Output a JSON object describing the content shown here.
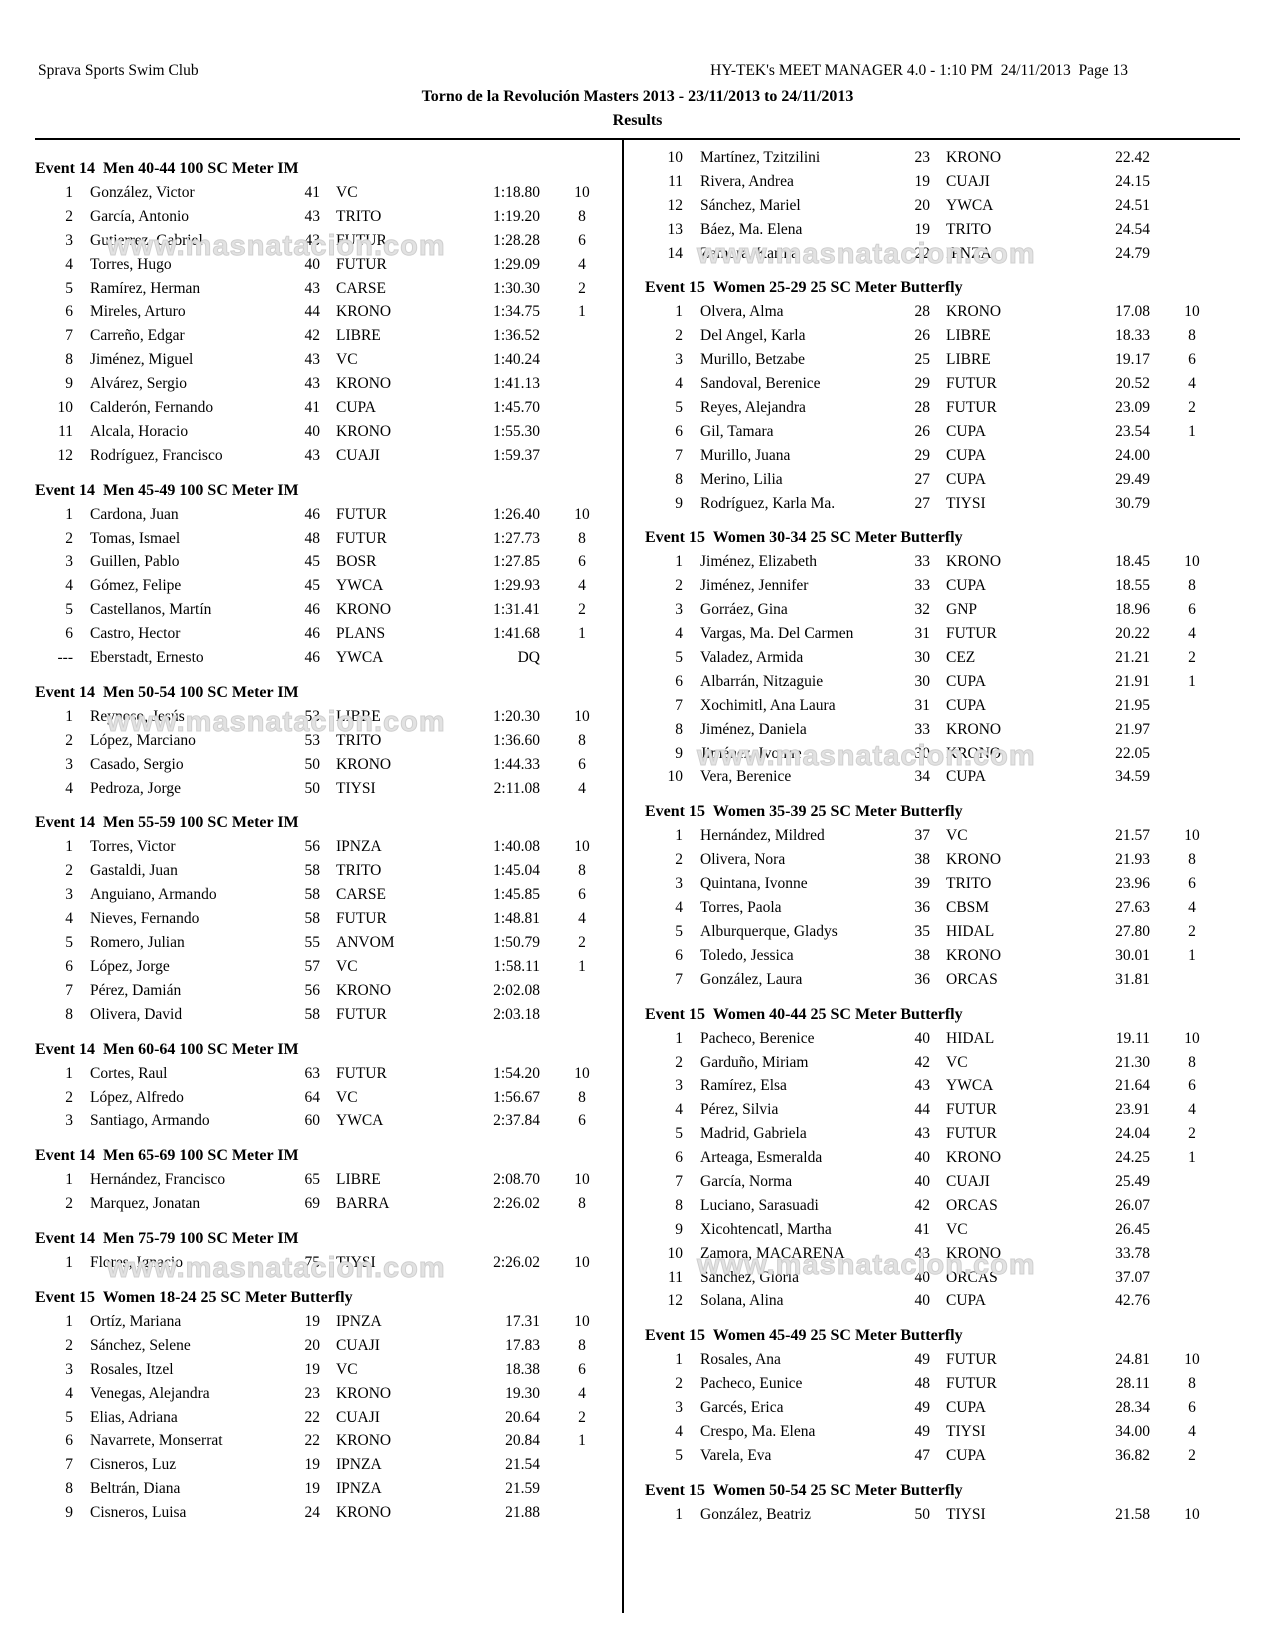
{
  "header": {
    "club": "Sprava Sports Swim Club",
    "manager": "HY-TEK's MEET MANAGER 4.0 - 1:10 PM  24/11/2013  Page 13",
    "title": "Torno de la Revolución Masters 2013 - 23/11/2013 to 24/11/2013",
    "results_label": "Results"
  },
  "watermark": {
    "text": "www.masnatacion.com"
  },
  "results": {
    "columns": [
      {
        "blocks": [
          {
            "title": "Event 14  Men 40-44 100 SC Meter IM",
            "rows": [
              [
                "1",
                "González, Victor",
                "41",
                "VC",
                "1:18.80",
                "10"
              ],
              [
                "2",
                "García, Antonio",
                "43",
                "TRITO",
                "1:19.20",
                "8"
              ],
              [
                "3",
                "Gutierrez, Gabriel",
                "43",
                "FUTUR",
                "1:28.28",
                "6"
              ],
              [
                "4",
                "Torres, Hugo",
                "40",
                "FUTUR",
                "1:29.09",
                "4"
              ],
              [
                "5",
                "Ramírez, Herman",
                "43",
                "CARSE",
                "1:30.30",
                "2"
              ],
              [
                "6",
                "Mireles, Arturo",
                "44",
                "KRONO",
                "1:34.75",
                "1"
              ],
              [
                "7",
                "Carreño, Edgar",
                "42",
                "LIBRE",
                "1:36.52",
                ""
              ],
              [
                "8",
                "Jiménez, Miguel",
                "43",
                "VC",
                "1:40.24",
                ""
              ],
              [
                "9",
                "Alvárez, Sergio",
                "43",
                "KRONO",
                "1:41.13",
                ""
              ],
              [
                "10",
                "Calderón, Fernando",
                "41",
                "CUPA",
                "1:45.70",
                ""
              ],
              [
                "11",
                "Alcala, Horacio",
                "40",
                "KRONO",
                "1:55.30",
                ""
              ],
              [
                "12",
                "Rodríguez, Francisco",
                "43",
                "CUAJI",
                "1:59.37",
                ""
              ]
            ]
          },
          {
            "title": "Event 14  Men 45-49 100 SC Meter IM",
            "rows": [
              [
                "1",
                "Cardona, Juan",
                "46",
                "FUTUR",
                "1:26.40",
                "10"
              ],
              [
                "2",
                "Tomas, Ismael",
                "48",
                "FUTUR",
                "1:27.73",
                "8"
              ],
              [
                "3",
                "Guillen, Pablo",
                "45",
                "BOSR",
                "1:27.85",
                "6"
              ],
              [
                "4",
                "Gómez, Felipe",
                "45",
                "YWCA",
                "1:29.93",
                "4"
              ],
              [
                "5",
                "Castellanos, Martín",
                "46",
                "KRONO",
                "1:31.41",
                "2"
              ],
              [
                "6",
                "Castro, Hector",
                "46",
                "PLANS",
                "1:41.68",
                "1"
              ],
              [
                "---",
                "Eberstadt, Ernesto",
                "46",
                "YWCA",
                "DQ",
                ""
              ]
            ]
          },
          {
            "title": "Event 14  Men 50-54 100 SC Meter IM",
            "rows": [
              [
                "1",
                "Reynoso, Jesús",
                "53",
                "LIBRE",
                "1:20.30",
                "10"
              ],
              [
                "2",
                "López, Marciano",
                "53",
                "TRITO",
                "1:36.60",
                "8"
              ],
              [
                "3",
                "Casado, Sergio",
                "50",
                "KRONO",
                "1:44.33",
                "6"
              ],
              [
                "4",
                "Pedroza, Jorge",
                "50",
                "TIYSI",
                "2:11.08",
                "4"
              ]
            ]
          },
          {
            "title": "Event 14  Men 55-59 100 SC Meter IM",
            "rows": [
              [
                "1",
                "Torres, Victor",
                "56",
                "IPNZA",
                "1:40.08",
                "10"
              ],
              [
                "2",
                "Gastaldi, Juan",
                "58",
                "TRITO",
                "1:45.04",
                "8"
              ],
              [
                "3",
                "Anguiano, Armando",
                "58",
                "CARSE",
                "1:45.85",
                "6"
              ],
              [
                "4",
                "Nieves, Fernando",
                "58",
                "FUTUR",
                "1:48.81",
                "4"
              ],
              [
                "5",
                "Romero, Julian",
                "55",
                "ANVOM",
                "1:50.79",
                "2"
              ],
              [
                "6",
                "López, Jorge",
                "57",
                "VC",
                "1:58.11",
                "1"
              ],
              [
                "7",
                "Pérez, Damián",
                "56",
                "KRONO",
                "2:02.08",
                ""
              ],
              [
                "8",
                "Olivera, David",
                "58",
                "FUTUR",
                "2:03.18",
                ""
              ]
            ]
          },
          {
            "title": "Event 14  Men 60-64 100 SC Meter IM",
            "rows": [
              [
                "1",
                "Cortes, Raul",
                "63",
                "FUTUR",
                "1:54.20",
                "10"
              ],
              [
                "2",
                "López, Alfredo",
                "64",
                "VC",
                "1:56.67",
                "8"
              ],
              [
                "3",
                "Santiago, Armando",
                "60",
                "YWCA",
                "2:37.84",
                "6"
              ]
            ]
          },
          {
            "title": "Event 14  Men 65-69 100 SC Meter IM",
            "rows": [
              [
                "1",
                "Hernández, Francisco",
                "65",
                "LIBRE",
                "2:08.70",
                "10"
              ],
              [
                "2",
                "Marquez, Jonatan",
                "69",
                "BARRA",
                "2:26.02",
                "8"
              ]
            ]
          },
          {
            "title": "Event 14  Men 75-79 100 SC Meter IM",
            "rows": [
              [
                "1",
                "Flores, Ignacio",
                "75",
                "TIYSI",
                "2:26.02",
                "10"
              ]
            ]
          },
          {
            "title": "Event 15  Women 18-24 25 SC Meter Butterfly",
            "rows": [
              [
                "1",
                "Ortíz, Mariana",
                "19",
                "IPNZA",
                "17.31",
                "10"
              ],
              [
                "2",
                "Sánchez, Selene",
                "20",
                "CUAJI",
                "17.83",
                "8"
              ],
              [
                "3",
                "Rosales, Itzel",
                "19",
                "VC",
                "18.38",
                "6"
              ],
              [
                "4",
                "Venegas, Alejandra",
                "23",
                "KRONO",
                "19.30",
                "4"
              ],
              [
                "5",
                "Elias, Adriana",
                "22",
                "CUAJI",
                "20.64",
                "2"
              ],
              [
                "6",
                "Navarrete, Monserrat",
                "22",
                "KRONO",
                "20.84",
                "1"
              ],
              [
                "7",
                "Cisneros, Luz",
                "19",
                "IPNZA",
                "21.54",
                ""
              ],
              [
                "8",
                "Beltrán, Diana",
                "19",
                "IPNZA",
                "21.59",
                ""
              ],
              [
                "9",
                "Cisneros, Luisa",
                "24",
                "KRONO",
                "21.88",
                ""
              ]
            ]
          }
        ]
      },
      {
        "blocks": [
          {
            "title": null,
            "rows": [
              [
                "10",
                "Martínez, Tzitzilini",
                "23",
                "KRONO",
                "22.42",
                ""
              ],
              [
                "11",
                "Rivera, Andrea",
                "19",
                "CUAJI",
                "24.15",
                ""
              ],
              [
                "12",
                "Sánchez, Mariel",
                "20",
                "YWCA",
                "24.51",
                ""
              ],
              [
                "13",
                "Báez, Ma. Elena",
                "19",
                "TRITO",
                "24.54",
                ""
              ],
              [
                "14",
                "Zamora, Karina",
                "22",
                "IPNZA",
                "24.79",
                ""
              ]
            ]
          },
          {
            "title": "Event 15  Women 25-29 25 SC Meter Butterfly",
            "rows": [
              [
                "1",
                "Olvera, Alma",
                "28",
                "KRONO",
                "17.08",
                "10"
              ],
              [
                "2",
                "Del Angel, Karla",
                "26",
                "LIBRE",
                "18.33",
                "8"
              ],
              [
                "3",
                "Murillo, Betzabe",
                "25",
                "LIBRE",
                "19.17",
                "6"
              ],
              [
                "4",
                "Sandoval, Berenice",
                "29",
                "FUTUR",
                "20.52",
                "4"
              ],
              [
                "5",
                "Reyes, Alejandra",
                "28",
                "FUTUR",
                "23.09",
                "2"
              ],
              [
                "6",
                "Gil, Tamara",
                "26",
                "CUPA",
                "23.54",
                "1"
              ],
              [
                "7",
                "Murillo, Juana",
                "29",
                "CUPA",
                "24.00",
                ""
              ],
              [
                "8",
                "Merino, Lilia",
                "27",
                "CUPA",
                "29.49",
                ""
              ],
              [
                "9",
                "Rodríguez, Karla Ma.",
                "27",
                "TIYSI",
                "30.79",
                ""
              ]
            ]
          },
          {
            "title": "Event 15  Women 30-34 25 SC Meter Butterfly",
            "rows": [
              [
                "1",
                "Jiménez, Elizabeth",
                "33",
                "KRONO",
                "18.45",
                "10"
              ],
              [
                "2",
                "Jiménez, Jennifer",
                "33",
                "CUPA",
                "18.55",
                "8"
              ],
              [
                "3",
                "Gorráez, Gina",
                "32",
                "GNP",
                "18.96",
                "6"
              ],
              [
                "4",
                "Vargas, Ma. Del Carmen",
                "31",
                "FUTUR",
                "20.22",
                "4"
              ],
              [
                "5",
                "Valadez, Armida",
                "30",
                "CEZ",
                "21.21",
                "2"
              ],
              [
                "6",
                "Albarrán, Nitzaguie",
                "30",
                "CUPA",
                "21.91",
                "1"
              ],
              [
                "7",
                "Xochimitl, Ana Laura",
                "31",
                "CUPA",
                "21.95",
                ""
              ],
              [
                "8",
                "Jiménez, Daniela",
                "33",
                "KRONO",
                "21.97",
                ""
              ],
              [
                "9",
                "Jiménez, Ivonne",
                "30",
                "KRONO",
                "22.05",
                ""
              ],
              [
                "10",
                "Vera, Berenice",
                "34",
                "CUPA",
                "34.59",
                ""
              ]
            ]
          },
          {
            "title": "Event 15  Women 35-39 25 SC Meter Butterfly",
            "rows": [
              [
                "1",
                "Hernández, Mildred",
                "37",
                "VC",
                "21.57",
                "10"
              ],
              [
                "2",
                "Olivera, Nora",
                "38",
                "KRONO",
                "21.93",
                "8"
              ],
              [
                "3",
                "Quintana, Ivonne",
                "39",
                "TRITO",
                "23.96",
                "6"
              ],
              [
                "4",
                "Torres, Paola",
                "36",
                "CBSM",
                "27.63",
                "4"
              ],
              [
                "5",
                "Alburquerque, Gladys",
                "35",
                "HIDAL",
                "27.80",
                "2"
              ],
              [
                "6",
                "Toledo, Jessica",
                "38",
                "KRONO",
                "30.01",
                "1"
              ],
              [
                "7",
                "González, Laura",
                "36",
                "ORCAS",
                "31.81",
                ""
              ]
            ]
          },
          {
            "title": "Event 15  Women 40-44 25 SC Meter Butterfly",
            "rows": [
              [
                "1",
                "Pacheco, Berenice",
                "40",
                "HIDAL",
                "19.11",
                "10"
              ],
              [
                "2",
                "Garduño, Miriam",
                "42",
                "VC",
                "21.30",
                "8"
              ],
              [
                "3",
                "Ramírez, Elsa",
                "43",
                "YWCA",
                "21.64",
                "6"
              ],
              [
                "4",
                "Pérez, Silvia",
                "44",
                "FUTUR",
                "23.91",
                "4"
              ],
              [
                "5",
                "Madrid, Gabriela",
                "43",
                "FUTUR",
                "24.04",
                "2"
              ],
              [
                "6",
                "Arteaga, Esmeralda",
                "40",
                "KRONO",
                "24.25",
                "1"
              ],
              [
                "7",
                "García, Norma",
                "40",
                "CUAJI",
                "25.49",
                ""
              ],
              [
                "8",
                "Luciano, Sarasuadi",
                "42",
                "ORCAS",
                "26.07",
                ""
              ],
              [
                "9",
                "Xicohtencatl, Martha",
                "41",
                "VC",
                "26.45",
                ""
              ],
              [
                "10",
                "Zamora, MACARENA",
                "43",
                "KRONO",
                "33.78",
                ""
              ],
              [
                "11",
                "Sánchez, Gloria",
                "40",
                "ORCAS",
                "37.07",
                ""
              ],
              [
                "12",
                "Solana, Alina",
                "40",
                "CUPA",
                "42.76",
                ""
              ]
            ]
          },
          {
            "title": "Event 15  Women 45-49 25 SC Meter Butterfly",
            "rows": [
              [
                "1",
                "Rosales, Ana",
                "49",
                "FUTUR",
                "24.81",
                "10"
              ],
              [
                "2",
                "Pacheco, Eunice",
                "48",
                "FUTUR",
                "28.11",
                "8"
              ],
              [
                "3",
                "Garcés, Erica",
                "49",
                "CUPA",
                "28.34",
                "6"
              ],
              [
                "4",
                "Crespo, Ma. Elena",
                "49",
                "TIYSI",
                "34.00",
                "4"
              ],
              [
                "5",
                "Varela, Eva",
                "47",
                "CUPA",
                "36.82",
                "2"
              ]
            ]
          },
          {
            "title": "Event 15  Women 50-54 25 SC Meter Butterfly",
            "rows": [
              [
                "1",
                "González, Beatriz",
                "50",
                "TIYSI",
                "21.58",
                "10"
              ]
            ]
          }
        ]
      }
    ]
  }
}
